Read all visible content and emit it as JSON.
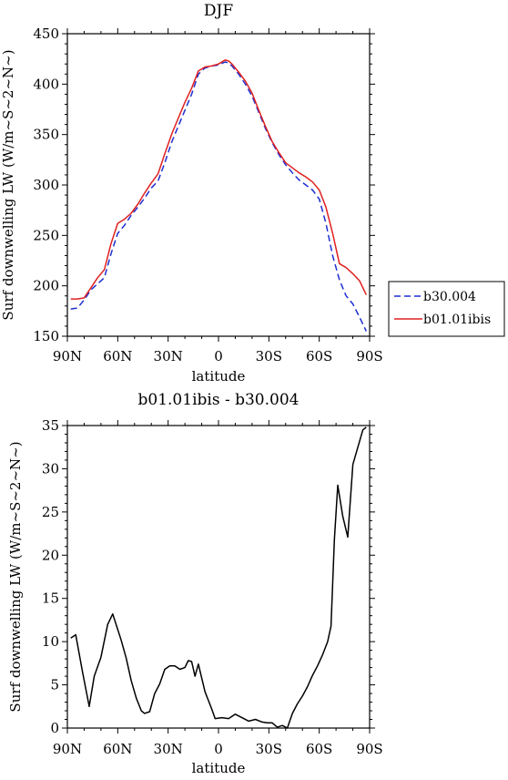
{
  "chart_data": [
    {
      "type": "line",
      "title": "DJF",
      "xlabel": "latitude",
      "ylabel": "Surf downwelling LW (W/m~S~2~N~)",
      "xlim": [
        90,
        -90
      ],
      "ylim": [
        150,
        450
      ],
      "xticks": [
        90,
        60,
        30,
        0,
        -30,
        -60,
        -90
      ],
      "xtick_labels": [
        "90N",
        "60N",
        "30N",
        "0",
        "30S",
        "60S",
        "90S"
      ],
      "yticks": [
        150,
        200,
        250,
        300,
        350,
        400,
        450
      ],
      "ytick_labels": [
        "150",
        "200",
        "250",
        "300",
        "350",
        "400",
        "450"
      ],
      "legend": {
        "position": "right"
      },
      "series": [
        {
          "name": "b30.004",
          "color": "#1f2fd0",
          "dash": "dashed",
          "x": [
            88,
            84,
            80,
            76,
            72,
            68,
            64,
            60,
            56,
            52,
            48,
            44,
            40,
            36,
            32,
            28,
            24,
            20,
            16,
            12,
            8,
            4,
            0,
            -4,
            -6,
            -8,
            -12,
            -16,
            -20,
            -24,
            -28,
            -32,
            -36,
            -40,
            -44,
            -48,
            -52,
            -56,
            -60,
            -64,
            -68,
            -72,
            -76,
            -80,
            -84,
            -88
          ],
          "y": [
            177,
            178,
            186,
            196,
            202,
            208,
            232,
            252,
            260,
            270,
            278,
            287,
            297,
            304,
            322,
            342,
            358,
            374,
            390,
            410,
            416,
            418,
            419,
            422,
            421,
            418,
            410,
            400,
            388,
            372,
            356,
            342,
            330,
            320,
            312,
            305,
            300,
            295,
            286,
            262,
            230,
            206,
            190,
            182,
            169,
            155
          ]
        },
        {
          "name": "b01.01ibis",
          "color": "#e02020",
          "dash": "solid",
          "x": [
            88,
            84,
            80,
            76,
            72,
            68,
            64,
            60,
            56,
            52,
            48,
            44,
            40,
            36,
            32,
            28,
            24,
            20,
            16,
            12,
            8,
            4,
            0,
            -4,
            -6,
            -8,
            -12,
            -16,
            -20,
            -24,
            -28,
            -32,
            -36,
            -40,
            -44,
            -48,
            -52,
            -56,
            -60,
            -64,
            -68,
            -72,
            -76,
            -80,
            -84,
            -88
          ],
          "y": [
            187,
            187,
            188,
            198,
            208,
            216,
            242,
            262,
            266,
            272,
            281,
            292,
            302,
            311,
            331,
            350,
            366,
            382,
            396,
            413,
            417,
            418,
            420,
            424,
            423,
            420,
            412,
            403,
            391,
            374,
            358,
            343,
            332,
            322,
            317,
            312,
            308,
            303,
            295,
            278,
            252,
            222,
            218,
            212,
            205,
            191
          ]
        }
      ]
    },
    {
      "type": "line",
      "title": "b01.01ibis - b30.004",
      "xlabel": "latitude",
      "ylabel": "Surf downwelling LW (W/m~S~2~N~)",
      "xlim": [
        90,
        -90
      ],
      "ylim": [
        0,
        35
      ],
      "xticks": [
        90,
        60,
        30,
        0,
        -30,
        -60,
        -90
      ],
      "xtick_labels": [
        "90N",
        "60N",
        "30N",
        "0",
        "30S",
        "60S",
        "90S"
      ],
      "yticks": [
        0,
        5,
        10,
        15,
        20,
        25,
        30,
        35
      ],
      "ytick_labels": [
        "0",
        "5",
        "10",
        "15",
        "20",
        "25",
        "30",
        "35"
      ],
      "series": [
        {
          "color": "#000000",
          "dash": "solid",
          "x": [
            88,
            85,
            81,
            77,
            74,
            70,
            66,
            63,
            61,
            58,
            55,
            52,
            49,
            46,
            44,
            41,
            38,
            35,
            32,
            29,
            26,
            23,
            20,
            18,
            16,
            14,
            12,
            8,
            4,
            2,
            -2,
            -6,
            -10,
            -14,
            -18,
            -22,
            -26,
            -29,
            -32,
            -35,
            -38,
            -41,
            -44,
            -47,
            -50,
            -53,
            -56,
            -59,
            -62,
            -65,
            -67,
            -69,
            -71,
            -74,
            -77,
            -80,
            -83,
            -86,
            -88
          ],
          "y": [
            10.4,
            10.8,
            6.5,
            2.5,
            6,
            8.2,
            12,
            13.2,
            12,
            10.2,
            8.1,
            5.5,
            3.5,
            2,
            1.7,
            1.9,
            4,
            5.1,
            6.8,
            7.2,
            7.2,
            6.8,
            7,
            7.8,
            7.7,
            6,
            7.4,
            4.2,
            2.2,
            1.1,
            1.2,
            1.1,
            1.6,
            1.2,
            0.8,
            1.0,
            0.7,
            0.6,
            0.6,
            0.1,
            0.3,
            0.0,
            1.7,
            2.8,
            3.7,
            4.8,
            6.1,
            7.2,
            8.5,
            10,
            11.8,
            21.8,
            28.1,
            24.5,
            22.1,
            30.5,
            32.5,
            34.5,
            34.8
          ]
        }
      ]
    }
  ]
}
